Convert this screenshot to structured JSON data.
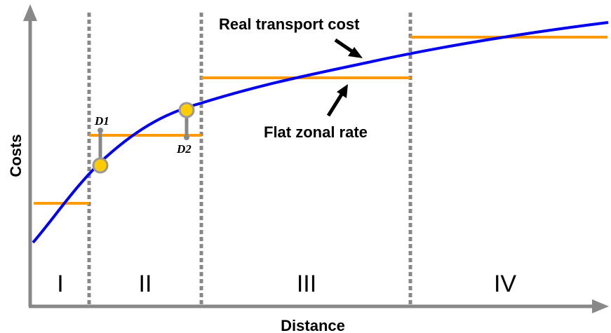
{
  "axes": {
    "x_label": "Distance",
    "y_label": "Costs"
  },
  "annotations": {
    "real_cost": "Real transport cost",
    "flat_rate": "Flat zonal rate",
    "d1": "D1",
    "d2": "D2"
  },
  "zones": [
    "I",
    "II",
    "III",
    "IV"
  ],
  "colors": {
    "curve": "#0000ee",
    "rate": "#ff9900",
    "boundary": "#888888",
    "axis": "#888888",
    "marker": "#ffcc00"
  }
}
